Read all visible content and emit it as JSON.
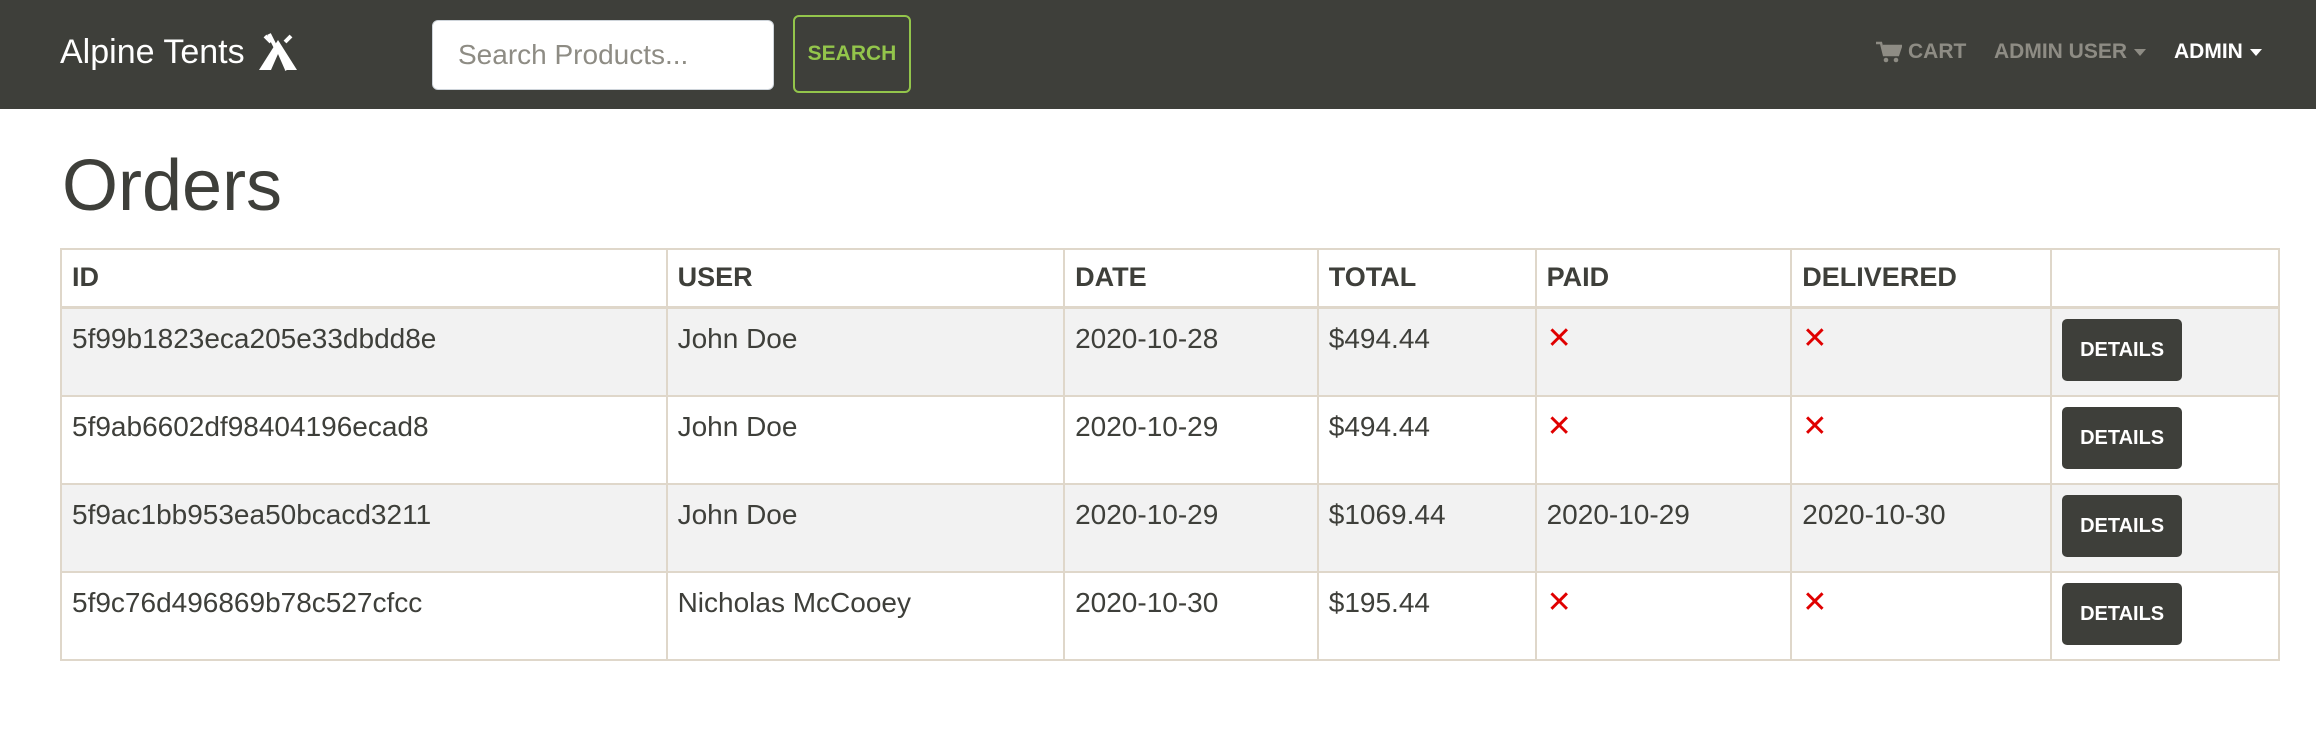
{
  "navbar": {
    "brand": "Alpine Tents",
    "brand_icon": "tent-icon",
    "search_placeholder": "Search Products...",
    "search_button": "SEARCH",
    "cart_label": "CART",
    "user_menu_label": "ADMIN USER",
    "admin_menu_label": "ADMIN"
  },
  "colors": {
    "navbar_bg": "#3e3f3a",
    "accent_green": "#93c54b",
    "status_red": "#e00000"
  },
  "page": {
    "title": "Orders"
  },
  "table": {
    "headers": [
      "ID",
      "USER",
      "DATE",
      "TOTAL",
      "PAID",
      "DELIVERED",
      ""
    ],
    "details_label": "DETAILS",
    "rows": [
      {
        "id": "5f99b1823eca205e33dbdd8e",
        "user": "John Doe",
        "date": "2020-10-28",
        "total": "$494.44",
        "paid": "✕",
        "delivered": "✕"
      },
      {
        "id": "5f9ab6602df98404196ecad8",
        "user": "John Doe",
        "date": "2020-10-29",
        "total": "$494.44",
        "paid": "✕",
        "delivered": "✕"
      },
      {
        "id": "5f9ac1bb953ea50bcacd3211",
        "user": "John Doe",
        "date": "2020-10-29",
        "total": "$1069.44",
        "paid": "2020-10-29",
        "delivered": "2020-10-30"
      },
      {
        "id": "5f9c76d496869b78c527cfcc",
        "user": "Nicholas McCooey",
        "date": "2020-10-30",
        "total": "$195.44",
        "paid": "✕",
        "delivered": "✕"
      }
    ]
  }
}
